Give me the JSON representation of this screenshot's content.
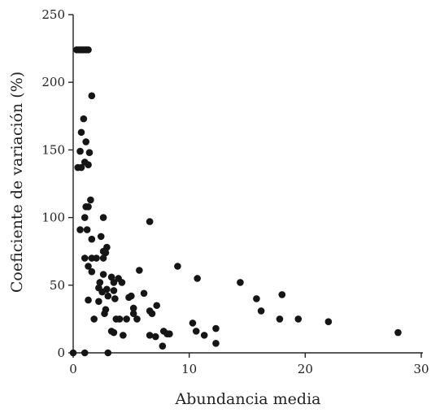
{
  "chart_data": {
    "type": "scatter",
    "title": "",
    "xlabel": "Abundancia media",
    "ylabel": "Coeficiente de variación (%)",
    "xlim": [
      0,
      30
    ],
    "ylim": [
      0,
      250
    ],
    "xticks": [
      0,
      10,
      20,
      30
    ],
    "yticks": [
      0,
      50,
      100,
      150,
      200,
      250
    ],
    "xtick_labels": [
      "0",
      "10",
      "20",
      "30"
    ],
    "ytick_labels": [
      "0",
      "50",
      "100",
      "150",
      "200",
      "250"
    ],
    "grid": false,
    "legend": "none",
    "marker_color": "#151515",
    "points": [
      {
        "x": 0.0,
        "y": 0
      },
      {
        "x": 0.3,
        "y": 224
      },
      {
        "x": 0.5,
        "y": 224
      },
      {
        "x": 0.7,
        "y": 224
      },
      {
        "x": 0.9,
        "y": 224
      },
      {
        "x": 1.1,
        "y": 224
      },
      {
        "x": 1.3,
        "y": 224
      },
      {
        "x": 1.6,
        "y": 190
      },
      {
        "x": 0.9,
        "y": 173
      },
      {
        "x": 0.7,
        "y": 163
      },
      {
        "x": 1.1,
        "y": 156
      },
      {
        "x": 0.6,
        "y": 149
      },
      {
        "x": 1.4,
        "y": 148
      },
      {
        "x": 1.0,
        "y": 141
      },
      {
        "x": 1.3,
        "y": 139
      },
      {
        "x": 0.4,
        "y": 137
      },
      {
        "x": 0.7,
        "y": 137
      },
      {
        "x": 1.5,
        "y": 113
      },
      {
        "x": 1.1,
        "y": 108
      },
      {
        "x": 1.3,
        "y": 108
      },
      {
        "x": 1.0,
        "y": 100
      },
      {
        "x": 2.6,
        "y": 100
      },
      {
        "x": 0.6,
        "y": 91
      },
      {
        "x": 1.2,
        "y": 91
      },
      {
        "x": 2.4,
        "y": 86
      },
      {
        "x": 1.6,
        "y": 84
      },
      {
        "x": 2.9,
        "y": 78
      },
      {
        "x": 2.6,
        "y": 75
      },
      {
        "x": 2.8,
        "y": 74
      },
      {
        "x": 1.0,
        "y": 70
      },
      {
        "x": 1.6,
        "y": 70
      },
      {
        "x": 2.0,
        "y": 70
      },
      {
        "x": 2.6,
        "y": 70
      },
      {
        "x": 1.3,
        "y": 64
      },
      {
        "x": 1.6,
        "y": 60
      },
      {
        "x": 2.6,
        "y": 58
      },
      {
        "x": 3.3,
        "y": 56
      },
      {
        "x": 3.9,
        "y": 55
      },
      {
        "x": 2.3,
        "y": 52
      },
      {
        "x": 3.5,
        "y": 52
      },
      {
        "x": 4.2,
        "y": 52
      },
      {
        "x": 2.2,
        "y": 48
      },
      {
        "x": 2.9,
        "y": 47
      },
      {
        "x": 2.5,
        "y": 45
      },
      {
        "x": 3.5,
        "y": 46
      },
      {
        "x": 3.0,
        "y": 42
      },
      {
        "x": 1.3,
        "y": 39
      },
      {
        "x": 2.2,
        "y": 38
      },
      {
        "x": 3.6,
        "y": 40
      },
      {
        "x": 4.8,
        "y": 41
      },
      {
        "x": 5.0,
        "y": 42
      },
      {
        "x": 5.7,
        "y": 61
      },
      {
        "x": 6.1,
        "y": 44
      },
      {
        "x": 6.6,
        "y": 97
      },
      {
        "x": 6.8,
        "y": 29
      },
      {
        "x": 5.2,
        "y": 33
      },
      {
        "x": 5.2,
        "y": 29
      },
      {
        "x": 6.6,
        "y": 31
      },
      {
        "x": 7.2,
        "y": 35
      },
      {
        "x": 2.8,
        "y": 32
      },
      {
        "x": 2.7,
        "y": 29
      },
      {
        "x": 1.8,
        "y": 25
      },
      {
        "x": 3.7,
        "y": 25
      },
      {
        "x": 4.0,
        "y": 25
      },
      {
        "x": 4.6,
        "y": 25
      },
      {
        "x": 5.5,
        "y": 25
      },
      {
        "x": 3.3,
        "y": 16
      },
      {
        "x": 3.5,
        "y": 15
      },
      {
        "x": 4.3,
        "y": 13
      },
      {
        "x": 6.6,
        "y": 13
      },
      {
        "x": 7.1,
        "y": 12
      },
      {
        "x": 7.8,
        "y": 16
      },
      {
        "x": 8.1,
        "y": 14
      },
      {
        "x": 8.3,
        "y": 14
      },
      {
        "x": 7.7,
        "y": 5
      },
      {
        "x": 9.0,
        "y": 64
      },
      {
        "x": 10.7,
        "y": 55
      },
      {
        "x": 10.3,
        "y": 22
      },
      {
        "x": 10.6,
        "y": 16
      },
      {
        "x": 11.3,
        "y": 13
      },
      {
        "x": 12.3,
        "y": 18
      },
      {
        "x": 12.3,
        "y": 7
      },
      {
        "x": 14.4,
        "y": 52
      },
      {
        "x": 15.8,
        "y": 40
      },
      {
        "x": 16.2,
        "y": 31
      },
      {
        "x": 18.0,
        "y": 43
      },
      {
        "x": 17.8,
        "y": 25
      },
      {
        "x": 19.4,
        "y": 25
      },
      {
        "x": 22.0,
        "y": 23
      },
      {
        "x": 28.0,
        "y": 15
      },
      {
        "x": 1.0,
        "y": 0
      },
      {
        "x": 3.0,
        "y": 0
      }
    ]
  }
}
